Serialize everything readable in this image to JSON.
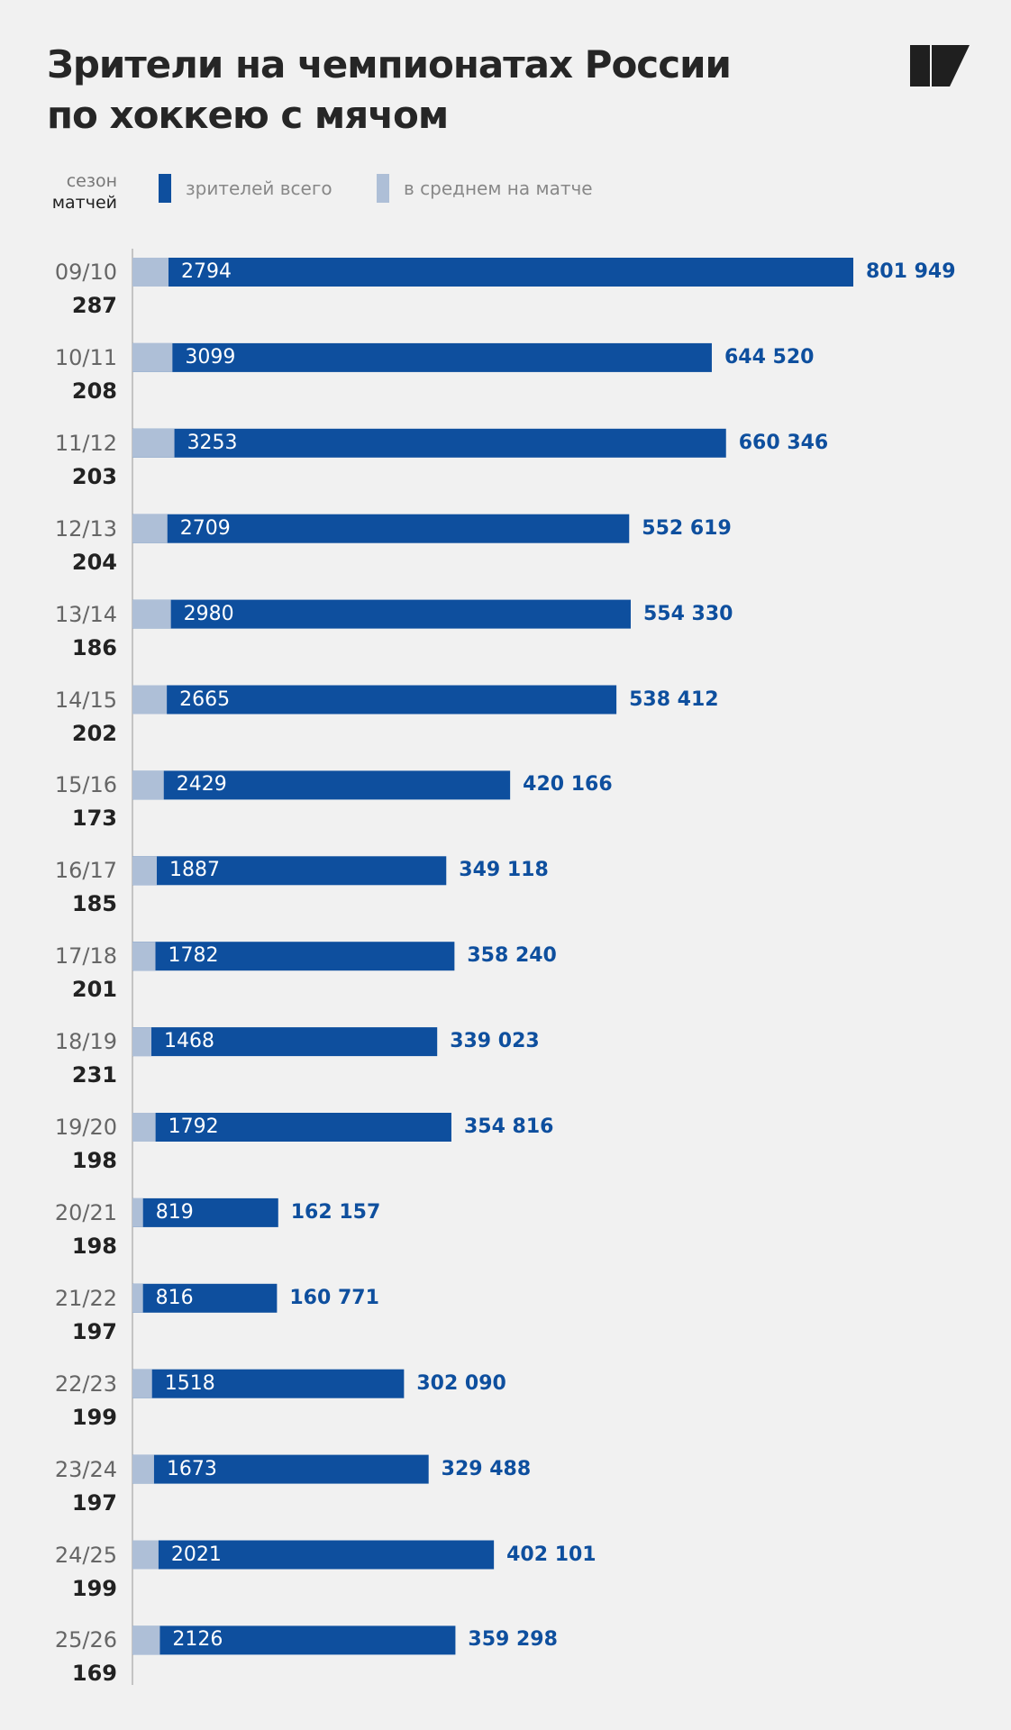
{
  "header": {
    "title_line1": "Зрители на чемпионатах России",
    "title_line2": "по хоккею с мячом"
  },
  "legend": {
    "season_label": "сезон",
    "matches_label": "матчей",
    "total_label": "зрителей всего",
    "avg_label": "в среднем на матче"
  },
  "colors": {
    "total": "#0e4f9e",
    "avg": "#aebfd7",
    "title": "#262626",
    "logo": "#1f1f1f",
    "axis": "#c4c4c4"
  },
  "chart_data": {
    "type": "bar",
    "orientation": "horizontal",
    "categories": [
      "09/10",
      "10/11",
      "11/12",
      "12/13",
      "13/14",
      "14/15",
      "15/16",
      "16/17",
      "17/18",
      "18/19",
      "19/20",
      "20/21",
      "21/22",
      "22/23",
      "23/24",
      "24/25",
      "25/26"
    ],
    "matches": [
      287,
      208,
      203,
      204,
      186,
      202,
      173,
      185,
      201,
      231,
      198,
      198,
      197,
      199,
      197,
      199,
      169
    ],
    "series": [
      {
        "name": "зрителей всего",
        "values": [
          801949,
          644520,
          660346,
          552619,
          554330,
          538412,
          420166,
          349118,
          358240,
          339023,
          354816,
          162157,
          160771,
          302090,
          329488,
          402101,
          359298
        ],
        "labels": [
          "801 949",
          "644 520",
          "660 346",
          "552 619",
          "554 330",
          "538 412",
          "420 166",
          "349 118",
          "358 240",
          "339 023",
          "354 816",
          "162 157",
          "160 771",
          "302 090",
          "329 488",
          "402 101",
          "359 298"
        ]
      },
      {
        "name": "в среднем на матче",
        "values": [
          2794,
          3099,
          3253,
          2709,
          2980,
          2665,
          2429,
          1887,
          1782,
          1468,
          1792,
          819,
          816,
          1518,
          1673,
          2021,
          2126
        ]
      }
    ]
  }
}
